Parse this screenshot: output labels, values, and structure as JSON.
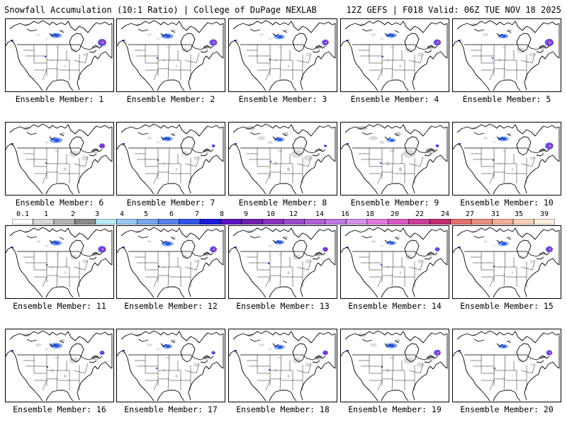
{
  "header": {
    "title_left": "Snowfall Accumulation (10:1 Ratio) | College of DuPage NEXLAB",
    "title_right": "12Z GEFS | F018 Valid: 06Z TUE NOV 18 2025"
  },
  "members": [
    {
      "label": "Ensemble Member: 1",
      "v": 0
    },
    {
      "label": "Ensemble Member: 2",
      "v": 1
    },
    {
      "label": "Ensemble Member: 3",
      "v": 2
    },
    {
      "label": "Ensemble Member: 4",
      "v": 3
    },
    {
      "label": "Ensemble Member: 5",
      "v": 4
    },
    {
      "label": "Ensemble Member: 6",
      "v": 5
    },
    {
      "label": "Ensemble Member: 7",
      "v": 6
    },
    {
      "label": "Ensemble Member: 8",
      "v": 7
    },
    {
      "label": "Ensemble Member: 9",
      "v": 8
    },
    {
      "label": "Ensemble Member: 10",
      "v": 9
    },
    {
      "label": "Ensemble Member: 11",
      "v": 10
    },
    {
      "label": "Ensemble Member: 12",
      "v": 11
    },
    {
      "label": "Ensemble Member: 13",
      "v": 12
    },
    {
      "label": "Ensemble Member: 14",
      "v": 13
    },
    {
      "label": "Ensemble Member: 15",
      "v": 14
    },
    {
      "label": "Ensemble Member: 16",
      "v": 15
    },
    {
      "label": "Ensemble Member: 17",
      "v": 16
    },
    {
      "label": "Ensemble Member: 18",
      "v": 17
    },
    {
      "label": "Ensemble Member: 19",
      "v": 18
    },
    {
      "label": "Ensemble Member: 20",
      "v": 19
    }
  ],
  "legend": {
    "labels": [
      "0.1",
      "1",
      "2",
      "3",
      "4",
      "5",
      "6",
      "7",
      "8",
      "9",
      "10",
      "12",
      "14",
      "16",
      "18",
      "20",
      "22",
      "24",
      "27",
      "31",
      "35",
      "39"
    ],
    "colors": [
      "#ffffff",
      "#d8d8d8",
      "#b4b4b4",
      "#8a8a8a",
      "#b8eaf2",
      "#96c8f0",
      "#78a6ee",
      "#5582ea",
      "#3055e6",
      "#1a1ae0",
      "#5a14c2",
      "#7020b0",
      "#8a30c0",
      "#9c48cc",
      "#b060d8",
      "#c078e2",
      "#d492ea",
      "#e07ae0",
      "#d858c4",
      "#cc3c9c",
      "#c42c72",
      "#e07070",
      "#ea9080",
      "#f2b098",
      "#f8d0b8",
      "#fdf0e0"
    ]
  }
}
